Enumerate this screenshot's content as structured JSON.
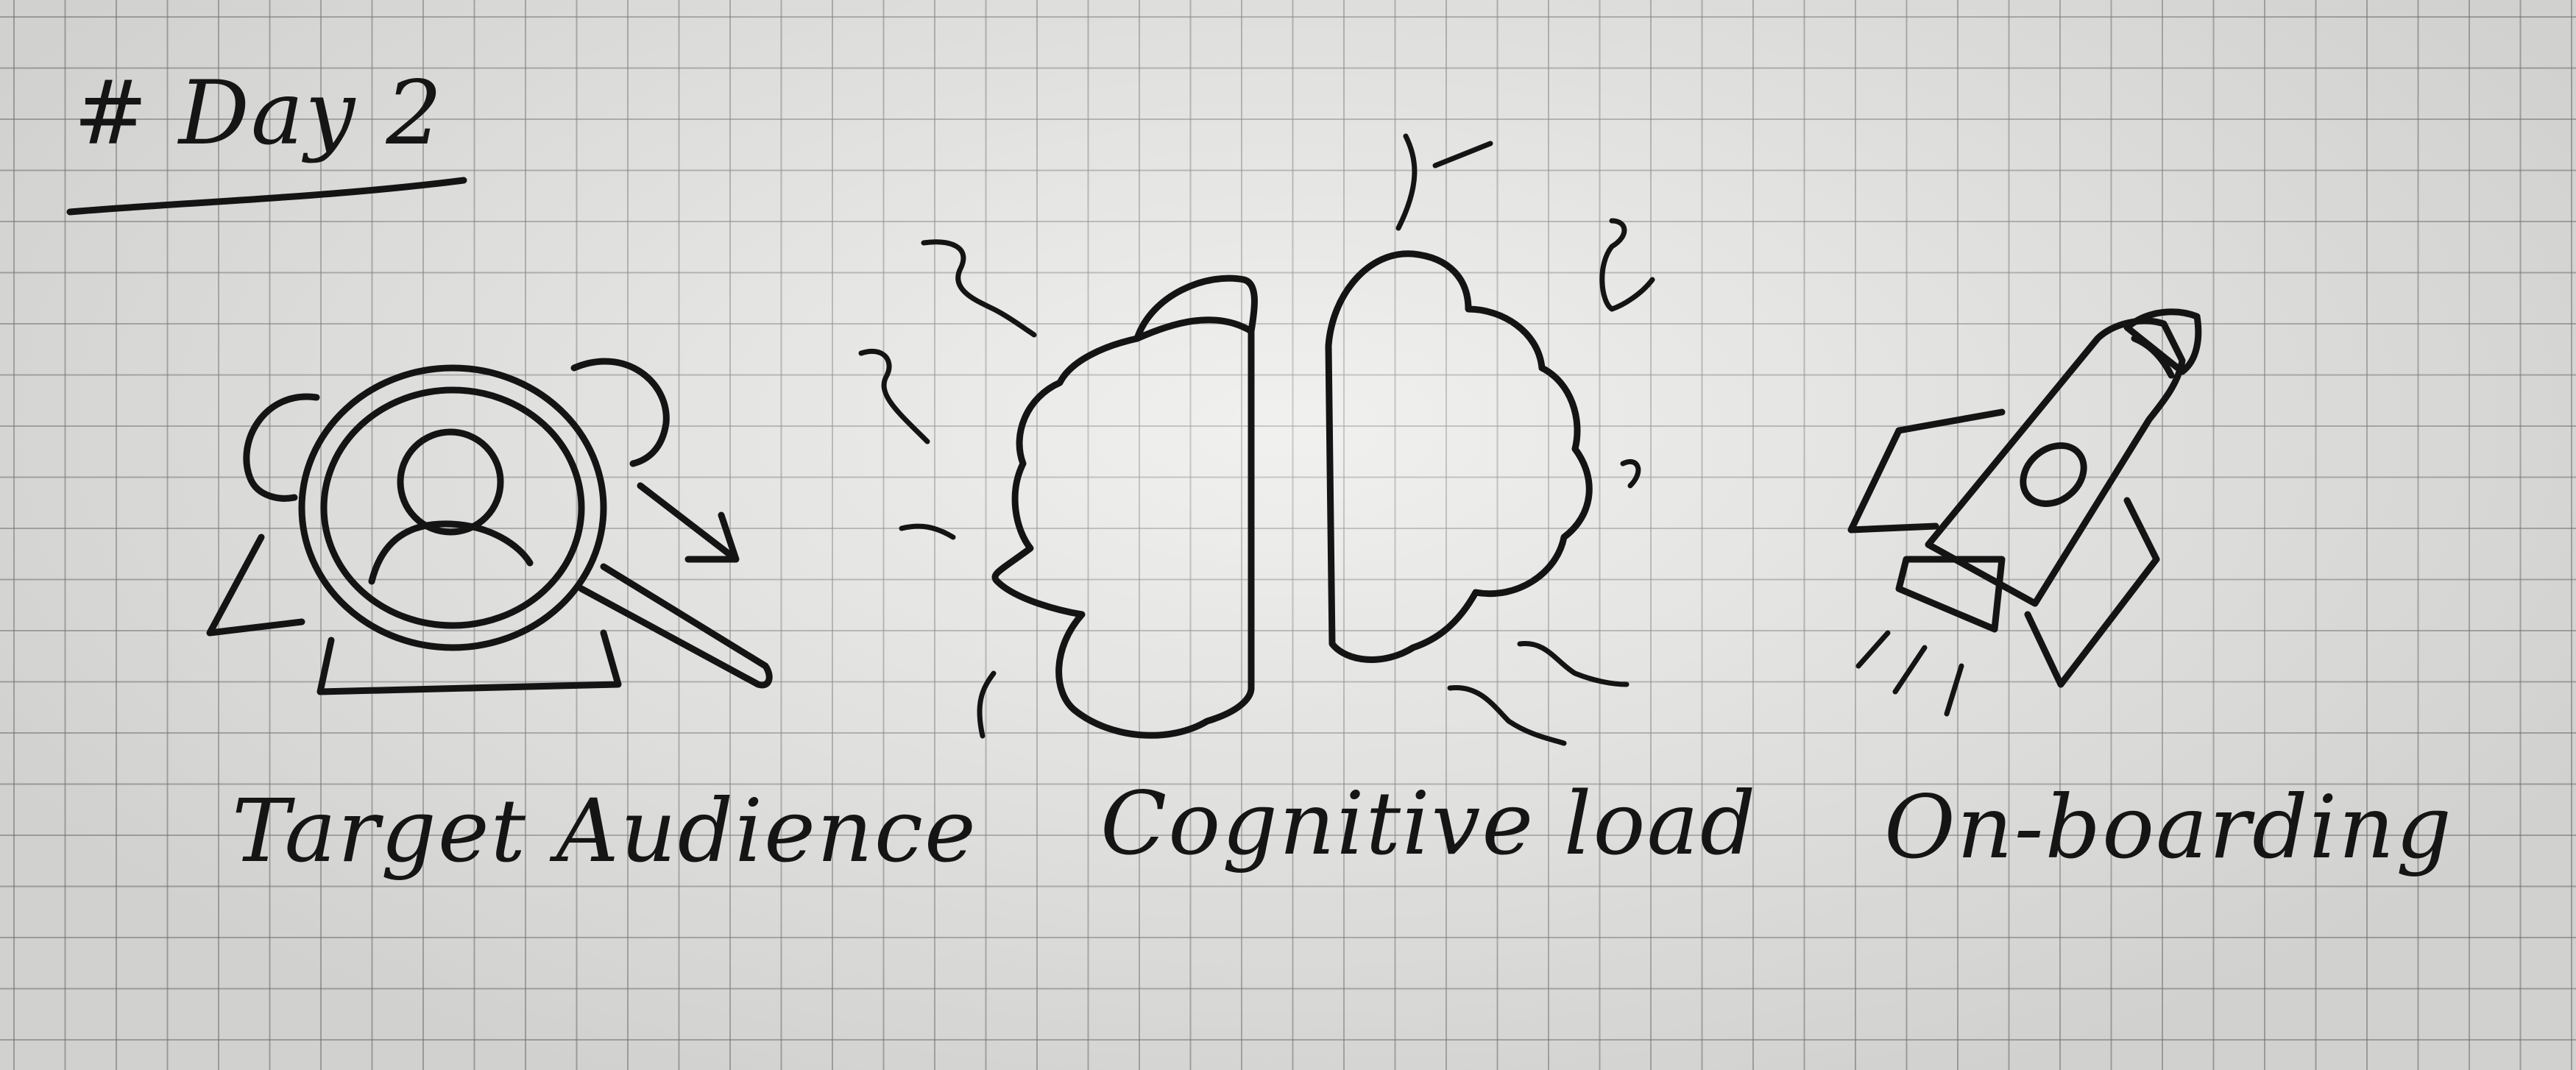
{
  "heading": "# Day 2",
  "sketches": [
    {
      "icon": "target-audience-icon",
      "label": "Target Audience"
    },
    {
      "icon": "cognitive-load-icon",
      "label": "Cognitive load"
    },
    {
      "icon": "rocket-icon",
      "label": "On-boarding"
    }
  ],
  "colors": {
    "ink": "#141414",
    "paper": "#e9e9e7",
    "grid": "#787878"
  }
}
